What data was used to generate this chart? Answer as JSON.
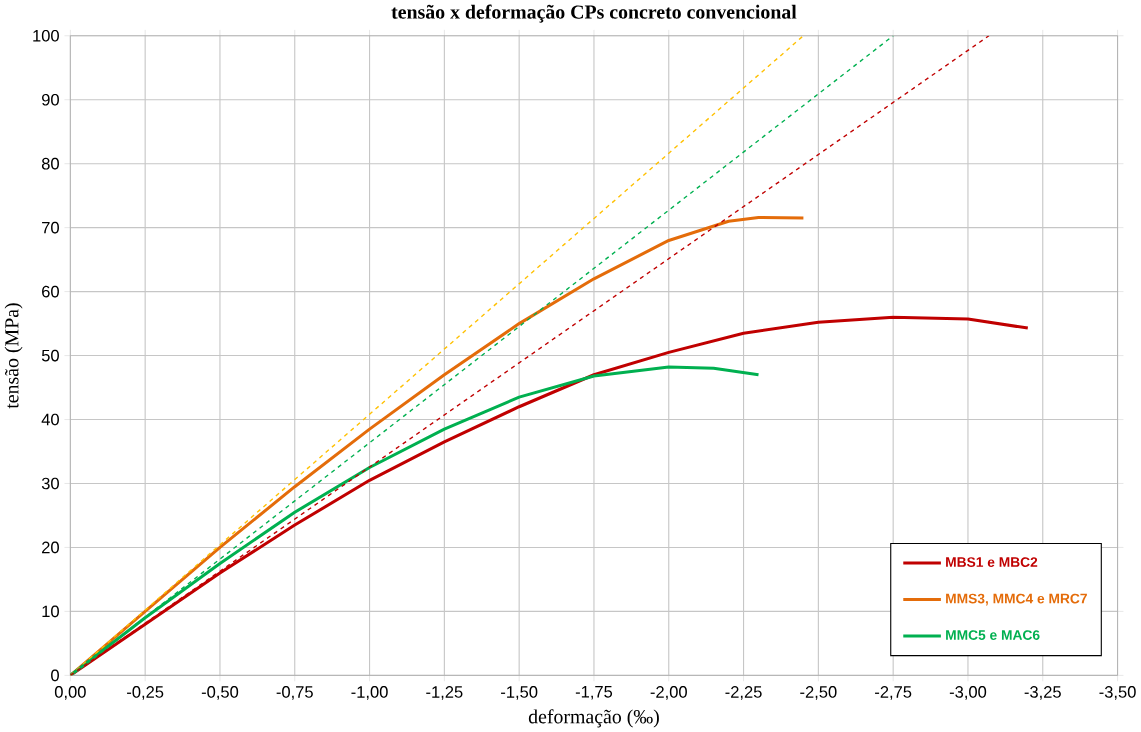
{
  "chart_data": {
    "type": "line",
    "title": "tensão x deformação CPs concreto convencional",
    "xlabel": "deformação (‰)",
    "ylabel": "tensão (MPa)",
    "xlim": [
      0,
      -3.5
    ],
    "ylim": [
      0,
      100
    ],
    "xticks": [
      {
        "value": 0,
        "label": "0,00"
      },
      {
        "value": -0.25,
        "label": "-0,25"
      },
      {
        "value": -0.5,
        "label": "-0,50"
      },
      {
        "value": -0.75,
        "label": "-0,75"
      },
      {
        "value": -1,
        "label": "-1,00"
      },
      {
        "value": -1.25,
        "label": "-1,25"
      },
      {
        "value": -1.5,
        "label": "-1,50"
      },
      {
        "value": -1.75,
        "label": "-1,75"
      },
      {
        "value": -2,
        "label": "-2,00"
      },
      {
        "value": -2.25,
        "label": "-2,25"
      },
      {
        "value": -2.5,
        "label": "-2,50"
      },
      {
        "value": -2.75,
        "label": "-2,75"
      },
      {
        "value": -3,
        "label": "-3,00"
      },
      {
        "value": -3.25,
        "label": "-3,25"
      },
      {
        "value": -3.5,
        "label": "-3,50"
      }
    ],
    "yticks": [
      0,
      10,
      20,
      30,
      40,
      50,
      60,
      70,
      80,
      90,
      100
    ],
    "grid": true,
    "legend": "bottom right",
    "marker": "none",
    "series": [
      {
        "name": "MBS1 e MBC2",
        "color": "#c00000",
        "line_style": "solid",
        "x": [
          0,
          -0.25,
          -0.5,
          -0.75,
          -1,
          -1.25,
          -1.5,
          -1.75,
          -2,
          -2.25,
          -2.5,
          -2.75,
          -3,
          -3.2
        ],
        "values": [
          0,
          8,
          16,
          23.5,
          30.5,
          36.5,
          42,
          47,
          50.5,
          53.5,
          55.2,
          56,
          55.7,
          54.3
        ]
      },
      {
        "name": "MMS3, MMC4 e MRC7",
        "color": "#e46c0a",
        "line_style": "solid",
        "x": [
          0,
          -0.25,
          -0.5,
          -0.75,
          -1,
          -1.25,
          -1.5,
          -1.75,
          -2,
          -2.2,
          -2.3,
          -2.45
        ],
        "values": [
          0,
          10,
          20,
          29.5,
          38.5,
          47,
          55,
          62,
          68,
          71,
          71.6,
          71.5
        ]
      },
      {
        "name": "MMC5 e MAC6",
        "color": "#00b050",
        "line_style": "solid",
        "x": [
          0,
          -0.25,
          -0.5,
          -0.75,
          -1,
          -1.25,
          -1.5,
          -1.75,
          -2,
          -2.15,
          -2.3
        ],
        "values": [
          0,
          9,
          17.5,
          25.5,
          32.5,
          38.5,
          43.5,
          46.8,
          48.2,
          48,
          47
        ]
      },
      {
        "color": "#ffc000",
        "line_style": "dashed",
        "x": [
          0,
          -2.45
        ],
        "values": [
          0,
          100
        ]
      },
      {
        "color": "#00b050",
        "line_style": "dashed",
        "x": [
          0,
          -2.75
        ],
        "values": [
          0,
          100
        ]
      },
      {
        "color": "#c00000",
        "line_style": "dashed",
        "x": [
          0,
          -3.07
        ],
        "values": [
          0,
          100
        ]
      }
    ]
  }
}
